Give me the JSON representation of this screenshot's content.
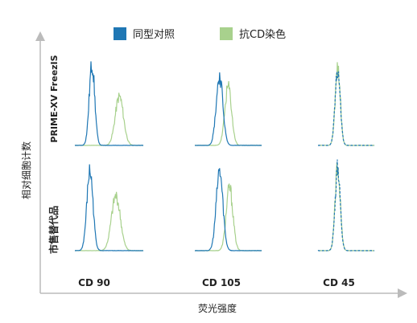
{
  "chart_data": {
    "type": "histogram-grid",
    "xlabel": "荧光强度",
    "ylabel": "相对细胞计数",
    "legend": [
      {
        "name": "同型对照",
        "color": "#1f77b4",
        "style": "solid"
      },
      {
        "name": "抗CD染色",
        "color": "#a8d18d",
        "style": "solid"
      }
    ],
    "legend_position": "top",
    "rows": [
      "PRIME-XV FreezIS",
      "市售替代品"
    ],
    "columns": [
      "CD 90",
      "CD 105",
      "CD 45"
    ],
    "axes_ticks": false,
    "panels": [
      {
        "row": 0,
        "col": 0,
        "isotype": {
          "mean": 0.25,
          "sd": 0.04,
          "peak": 1.0
        },
        "stain": {
          "mean": 0.65,
          "sd": 0.06,
          "peak": 0.6
        }
      },
      {
        "row": 0,
        "col": 1,
        "isotype": {
          "mean": 0.37,
          "sd": 0.05,
          "peak": 0.85
        },
        "stain": {
          "mean": 0.5,
          "sd": 0.05,
          "peak": 0.72
        }
      },
      {
        "row": 0,
        "col": 2,
        "isotype": {
          "mean": 0.35,
          "sd": 0.045,
          "peak": 0.95
        },
        "stain": {
          "mean": 0.35,
          "sd": 0.045,
          "peak": 0.95
        }
      },
      {
        "row": 1,
        "col": 0,
        "isotype": {
          "mean": 0.22,
          "sd": 0.045,
          "peak": 0.95
        },
        "stain": {
          "mean": 0.6,
          "sd": 0.065,
          "peak": 0.65
        }
      },
      {
        "row": 1,
        "col": 1,
        "isotype": {
          "mean": 0.37,
          "sd": 0.05,
          "peak": 0.95
        },
        "stain": {
          "mean": 0.52,
          "sd": 0.05,
          "peak": 0.75
        }
      },
      {
        "row": 1,
        "col": 2,
        "isotype": {
          "mean": 0.35,
          "sd": 0.045,
          "peak": 1.0
        },
        "stain": {
          "mean": 0.35,
          "sd": 0.045,
          "peak": 1.0
        }
      }
    ]
  }
}
